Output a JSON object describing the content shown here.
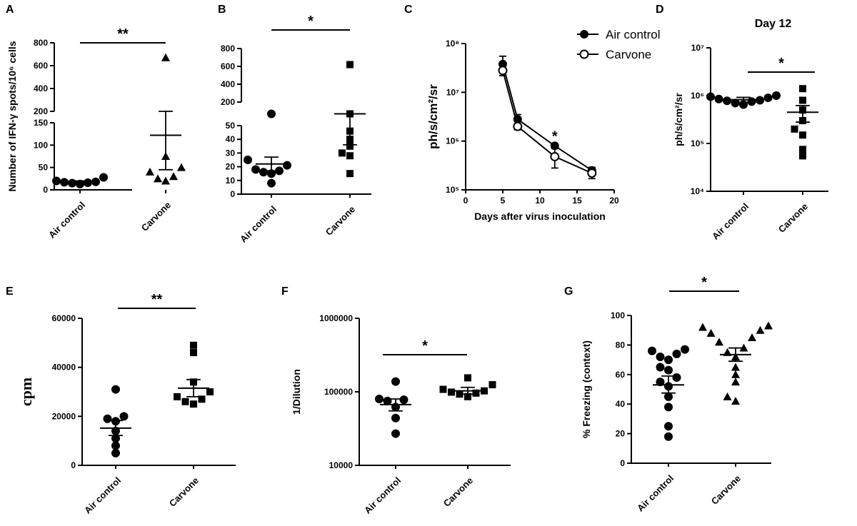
{
  "figure": {
    "title": "Air control vs Carvone multi-panel figure"
  },
  "colors": {
    "ink": "#000000",
    "background": "#ffffff"
  },
  "chart_data": [
    {
      "panel": "A",
      "type": "scatter",
      "ylabel": "Number of IFN-γ spots/10⁶ cells",
      "y_segments": [
        {
          "range": [
            0,
            150
          ],
          "ticks": [
            0,
            50,
            100,
            150
          ]
        },
        {
          "range": [
            200,
            800
          ],
          "ticks": [
            200,
            400,
            600,
            800
          ]
        }
      ],
      "categories": [
        "Air control",
        "Carvone"
      ],
      "markers": [
        "circle",
        "triangle"
      ],
      "points": [
        [
          13,
          18,
          17,
          15,
          16,
          20,
          28
        ],
        [
          20,
          25,
          30,
          40,
          50,
          75,
          670
        ]
      ],
      "mean": [
        18,
        122
      ],
      "sem_upper": [
        20,
        200
      ],
      "sem_lower": [
        16,
        45
      ],
      "significance": "**"
    },
    {
      "panel": "B",
      "type": "scatter",
      "y_segments": [
        {
          "range": [
            0,
            50
          ],
          "ticks": [
            0,
            10,
            20,
            30,
            40,
            50
          ]
        },
        {
          "range": [
            200,
            800
          ],
          "ticks": [
            200,
            400,
            600,
            800
          ]
        }
      ],
      "categories": [
        "Air control",
        "Carvone"
      ],
      "markers": [
        "circle",
        "square"
      ],
      "points": [
        [
          8,
          15,
          17,
          16,
          21,
          18,
          25,
          60
        ],
        [
          15,
          28,
          30,
          35,
          40,
          46,
          100,
          620
        ]
      ],
      "mean": [
        22,
        110
      ],
      "sem_upper": [
        27,
        180
      ],
      "sem_lower": [
        17,
        36
      ],
      "significance": "*"
    },
    {
      "panel": "C",
      "type": "line",
      "yscale": "log",
      "xlabel": "Days after virus inoculation",
      "ylabel": "ph/s/cm²/sr",
      "xlim": [
        0,
        20
      ],
      "xticks": [
        0,
        5,
        10,
        15,
        20
      ],
      "ylim": [
        100000,
        100000000
      ],
      "series": [
        {
          "name": "Air control",
          "marker": "filled",
          "x": [
            5,
            7,
            12,
            17
          ],
          "y": [
            38000000,
            2800000,
            800000,
            250000
          ],
          "err_hi": [
            55000000,
            3500000,
            850000,
            290000
          ],
          "err_lo": [
            25000000,
            2200000,
            750000,
            210000
          ]
        },
        {
          "name": "Carvone",
          "marker": "open",
          "x": [
            5,
            7,
            12,
            17
          ],
          "y": [
            28000000,
            2000000,
            480000,
            220000
          ],
          "err_hi": [
            35000000,
            2500000,
            700000,
            280000
          ],
          "err_lo": [
            22000000,
            1700000,
            280000,
            170000
          ]
        }
      ],
      "annotations": [
        {
          "x": 12,
          "y": 1500000,
          "text": "*"
        }
      ]
    },
    {
      "panel": "D",
      "type": "scatter",
      "yscale": "log",
      "title": "Day 12",
      "ylabel": "ph/s/cm²/sr",
      "ylim": [
        10000,
        10000000
      ],
      "categories": [
        "Air control",
        "Carvone"
      ],
      "markers": [
        "circle",
        "square"
      ],
      "points": [
        [
          650000,
          750000,
          800000,
          850000,
          900000,
          950000,
          700000,
          1000000,
          780000
        ],
        [
          55000,
          75000,
          150000,
          200000,
          300000,
          500000,
          800000,
          1400000
        ]
      ],
      "mean": [
        820000,
        450000
      ],
      "sem_upper": [
        920000,
        620000
      ],
      "sem_lower": [
        720000,
        280000
      ],
      "significance": "*"
    },
    {
      "panel": "E",
      "type": "scatter",
      "ylabel": "cpm",
      "ylim": [
        0,
        60000
      ],
      "yticks": [
        0,
        20000,
        40000,
        60000
      ],
      "categories": [
        "Air control",
        "Carvone"
      ],
      "markers": [
        "circle",
        "square"
      ],
      "points": [
        [
          5000,
          8000,
          11000,
          14000,
          18000,
          19000,
          20000,
          31000
        ],
        [
          25000,
          26000,
          27000,
          28000,
          30000,
          34000,
          46000,
          49000
        ]
      ],
      "mean": [
        15200,
        31500
      ],
      "sem_upper": [
        18300,
        35000
      ],
      "sem_lower": [
        12200,
        28000
      ],
      "significance": "**"
    },
    {
      "panel": "F",
      "type": "scatter",
      "yscale": "log",
      "ylabel": "1/Dilution",
      "ylim": [
        10000,
        1000000
      ],
      "categories": [
        "Air control",
        "Carvone"
      ],
      "markers": [
        "circle",
        "square"
      ],
      "points": [
        [
          27000,
          44000,
          62000,
          75000,
          78000,
          80000,
          138000
        ],
        [
          86000,
          93000,
          96000,
          99000,
          103000,
          108000,
          125000,
          155000
        ]
      ],
      "mean": [
        67000,
        103000
      ],
      "sem_upper": [
        80000,
        115000
      ],
      "sem_lower": [
        55000,
        93000
      ],
      "significance": "*"
    },
    {
      "panel": "G",
      "type": "scatter",
      "ylabel": "% Freezing (context)",
      "ylim": [
        0,
        100
      ],
      "yticks": [
        0,
        20,
        40,
        60,
        80,
        100
      ],
      "categories": [
        "Air control",
        "Carvone"
      ],
      "markers": [
        "circle",
        "triangle"
      ],
      "points": [
        [
          18,
          25,
          38,
          45,
          52,
          55,
          58,
          63,
          65,
          70,
          72,
          74,
          76,
          77
        ],
        [
          42,
          45,
          55,
          60,
          65,
          72,
          75,
          78,
          82,
          85,
          88,
          90,
          92,
          93
        ]
      ],
      "mean": [
        53,
        73.5
      ],
      "sem_upper": [
        59,
        78
      ],
      "sem_lower": [
        47.5,
        69
      ],
      "significance": "*"
    }
  ]
}
